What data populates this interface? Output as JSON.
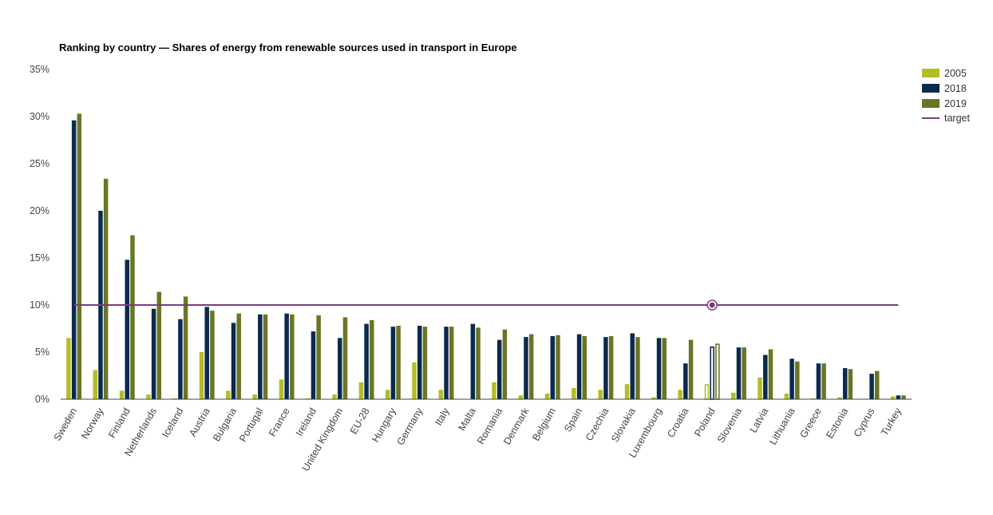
{
  "chart_data": {
    "type": "bar",
    "title": "Ranking by country — Shares of energy from renewable sources used in transport in Europe",
    "xlabel": "",
    "ylabel": "",
    "ylim": [
      0,
      35
    ],
    "yticks": [
      {
        "value": 0,
        "label": "0%"
      },
      {
        "value": 5,
        "label": "5%"
      },
      {
        "value": 10,
        "label": "10%"
      },
      {
        "value": 15,
        "label": "15%"
      },
      {
        "value": 20,
        "label": "20%"
      },
      {
        "value": 25,
        "label": "25%"
      },
      {
        "value": 30,
        "label": "30%"
      },
      {
        "value": 35,
        "label": "35%"
      }
    ],
    "categories": [
      "Sweden",
      "Norway",
      "Finland",
      "Netherlands",
      "Iceland",
      "Austria",
      "Bulgaria",
      "Portugal",
      "France",
      "Ireland",
      "United Kingdom",
      "EU-28",
      "Hungary",
      "Germany",
      "Italy",
      "Malta",
      "Romania",
      "Denmark",
      "Belgium",
      "Spain",
      "Czechia",
      "Slovakia",
      "Luxembourg",
      "Croatia",
      "Poland",
      "Slovenia",
      "Latvia",
      "Lithuania",
      "Greece",
      "Estonia",
      "Cyprus",
      "Turkey"
    ],
    "highlighted_category": "Poland",
    "series": [
      {
        "name": "2005",
        "color": "#b3bd27",
        "values": [
          6.5,
          3.1,
          0.9,
          0.5,
          0.1,
          5.0,
          0.9,
          0.5,
          2.1,
          0.1,
          0.5,
          1.8,
          1.0,
          3.9,
          1.0,
          0.0,
          1.8,
          0.4,
          0.6,
          1.2,
          1.0,
          1.6,
          0.2,
          1.0,
          1.6,
          0.7,
          2.3,
          0.6,
          0.1,
          0.2,
          0.0,
          0.3
        ]
      },
      {
        "name": "2018",
        "color": "#0b2a4e",
        "values": [
          29.6,
          20.0,
          14.8,
          9.6,
          8.5,
          9.8,
          8.1,
          9.0,
          9.1,
          7.2,
          6.5,
          8.0,
          7.7,
          7.8,
          7.7,
          8.0,
          6.3,
          6.6,
          6.7,
          6.9,
          6.6,
          7.0,
          6.5,
          3.8,
          5.6,
          5.5,
          4.7,
          4.3,
          3.8,
          3.3,
          2.7,
          0.4
        ]
      },
      {
        "name": "2019",
        "color": "#6b7526",
        "values": [
          30.3,
          23.4,
          17.4,
          11.4,
          10.9,
          9.4,
          9.1,
          9.0,
          9.0,
          8.9,
          8.7,
          8.4,
          7.8,
          7.7,
          7.7,
          7.6,
          7.4,
          6.9,
          6.8,
          6.7,
          6.7,
          6.6,
          6.5,
          6.3,
          5.9,
          5.5,
          5.3,
          4.0,
          3.8,
          3.2,
          3.0,
          0.4
        ]
      }
    ],
    "target": {
      "name": "target",
      "value": 10,
      "color": "#7a3d7e"
    },
    "legend_position": "top-right",
    "grid": false
  }
}
